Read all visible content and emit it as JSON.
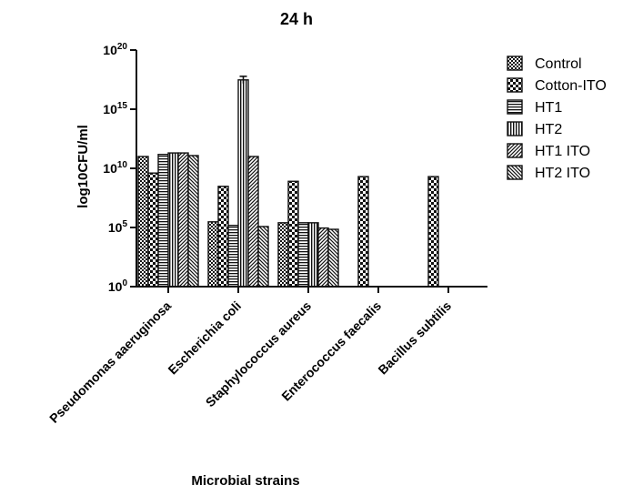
{
  "chart_data": {
    "type": "bar",
    "title": "24 h",
    "xlabel": "Microbial strains",
    "ylabel": "log10CFU/ml",
    "yscale": "log",
    "ylim": [
      1,
      1e+20
    ],
    "yticks": [
      {
        "value": 1,
        "base": "10",
        "exp": "0"
      },
      {
        "value": 100000,
        "base": "10",
        "exp": "5"
      },
      {
        "value": 10000000000.0,
        "base": "10",
        "exp": "10"
      },
      {
        "value": 1000000000000000.0,
        "base": "10",
        "exp": "15"
      },
      {
        "value": 1e+20,
        "base": "10",
        "exp": "20"
      }
    ],
    "categories": [
      "Pseudomonas aaeruginosa",
      "Escherichia coli",
      "Staphylococcus aureus",
      "Enterococcus faecalis",
      "Bacillus subtilis"
    ],
    "legend_position": "right",
    "series": [
      {
        "name": "Control",
        "pattern": "checker-small",
        "values": [
          100000000000.0,
          300000.0,
          250000.0,
          0,
          0
        ]
      },
      {
        "name": "Cotton-ITO",
        "pattern": "checker-large",
        "values": [
          4000000000.0,
          300000000.0,
          800000000.0,
          2000000000.0,
          2000000000.0
        ]
      },
      {
        "name": "HT1",
        "pattern": "hlines",
        "values": [
          150000000000.0,
          150000.0,
          250000.0,
          0,
          0
        ]
      },
      {
        "name": "HT2",
        "pattern": "vlines",
        "values": [
          200000000000.0,
          3e+17,
          250000.0,
          0,
          0
        ]
      },
      {
        "name": "HT1 ITO",
        "pattern": "diag-up",
        "values": [
          200000000000.0,
          100000000000.0,
          90000.0,
          0,
          0
        ]
      },
      {
        "name": "HT2 ITO",
        "pattern": "diag-down",
        "values": [
          120000000000.0,
          120000.0,
          70000.0,
          0,
          0
        ]
      }
    ],
    "error_bars": [
      {
        "series": "HT2",
        "category": "Escherichia coli",
        "value": 3e+17,
        "high": 6e+17,
        "low": 1.5e+17
      }
    ]
  }
}
